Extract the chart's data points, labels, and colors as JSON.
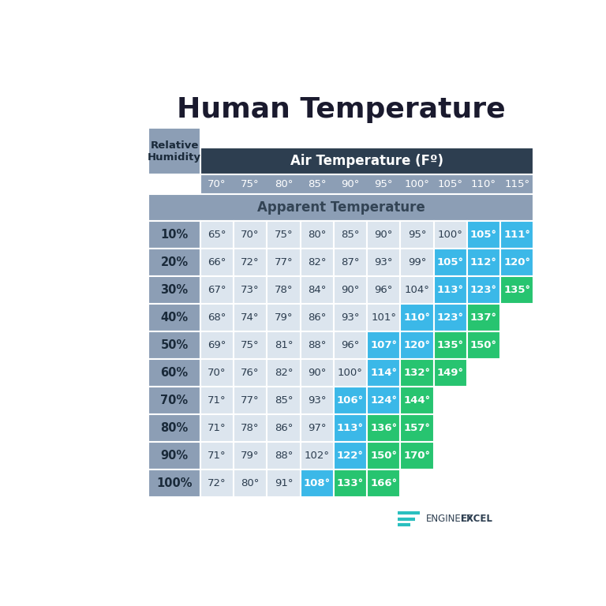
{
  "title": "Human Temperature",
  "col_header_bg": "#2d3e50",
  "col_header_text": "#ffffff",
  "subheader_bg": "#8c9eb5",
  "apparent_temp_text": "#334455",
  "row_label_text": "#2d3e50",
  "cell_bg_default": "#dce5ee",
  "cell_bg_blue": "#3bb8e8",
  "cell_bg_green": "#27c470",
  "cell_text_default": "#2d3e50",
  "cell_text_colored": "#ffffff",
  "air_temps": [
    "70°",
    "75°",
    "80°",
    "85°",
    "90°",
    "95°",
    "100°",
    "105°",
    "110°",
    "115°"
  ],
  "humidities": [
    "10%",
    "20%",
    "30%",
    "40%",
    "50%",
    "60%",
    "70%",
    "80%",
    "90%",
    "100%"
  ],
  "apparent_temps": [
    [
      65,
      70,
      75,
      80,
      85,
      90,
      95,
      100,
      105,
      111
    ],
    [
      66,
      72,
      77,
      82,
      87,
      93,
      99,
      105,
      112,
      120
    ],
    [
      67,
      73,
      78,
      84,
      90,
      96,
      104,
      113,
      123,
      135
    ],
    [
      68,
      74,
      79,
      86,
      93,
      101,
      110,
      123,
      137,
      null
    ],
    [
      69,
      75,
      81,
      88,
      96,
      107,
      120,
      135,
      150,
      null
    ],
    [
      70,
      76,
      82,
      90,
      100,
      114,
      132,
      149,
      null,
      null
    ],
    [
      71,
      77,
      85,
      93,
      106,
      124,
      144,
      null,
      null,
      null
    ],
    [
      71,
      78,
      86,
      97,
      113,
      136,
      157,
      null,
      null,
      null
    ],
    [
      71,
      79,
      88,
      102,
      122,
      150,
      170,
      null,
      null,
      null
    ],
    [
      72,
      80,
      91,
      108,
      133,
      166,
      null,
      null,
      null,
      null
    ]
  ],
  "color_scheme": [
    [
      "none",
      "none",
      "none",
      "none",
      "none",
      "none",
      "none",
      "none",
      "blue",
      "blue"
    ],
    [
      "none",
      "none",
      "none",
      "none",
      "none",
      "none",
      "none",
      "blue",
      "blue",
      "blue"
    ],
    [
      "none",
      "none",
      "none",
      "none",
      "none",
      "none",
      "none",
      "blue",
      "blue",
      "green"
    ],
    [
      "none",
      "none",
      "none",
      "none",
      "none",
      "none",
      "blue",
      "blue",
      "green",
      "none"
    ],
    [
      "none",
      "none",
      "none",
      "none",
      "none",
      "blue",
      "blue",
      "green",
      "green",
      "none"
    ],
    [
      "none",
      "none",
      "none",
      "none",
      "none",
      "blue",
      "green",
      "green",
      "none",
      "none"
    ],
    [
      "none",
      "none",
      "none",
      "none",
      "blue",
      "blue",
      "green",
      "none",
      "none",
      "none"
    ],
    [
      "none",
      "none",
      "none",
      "none",
      "blue",
      "green",
      "green",
      "none",
      "none",
      "none"
    ],
    [
      "none",
      "none",
      "none",
      "none",
      "blue",
      "green",
      "green",
      "none",
      "none",
      "none"
    ],
    [
      "none",
      "none",
      "none",
      "blue",
      "green",
      "green",
      "none",
      "none",
      "none",
      "none"
    ]
  ],
  "bg_color": "#ffffff",
  "brand_color": "#2d3e50",
  "brand_teal": "#2abfbf"
}
